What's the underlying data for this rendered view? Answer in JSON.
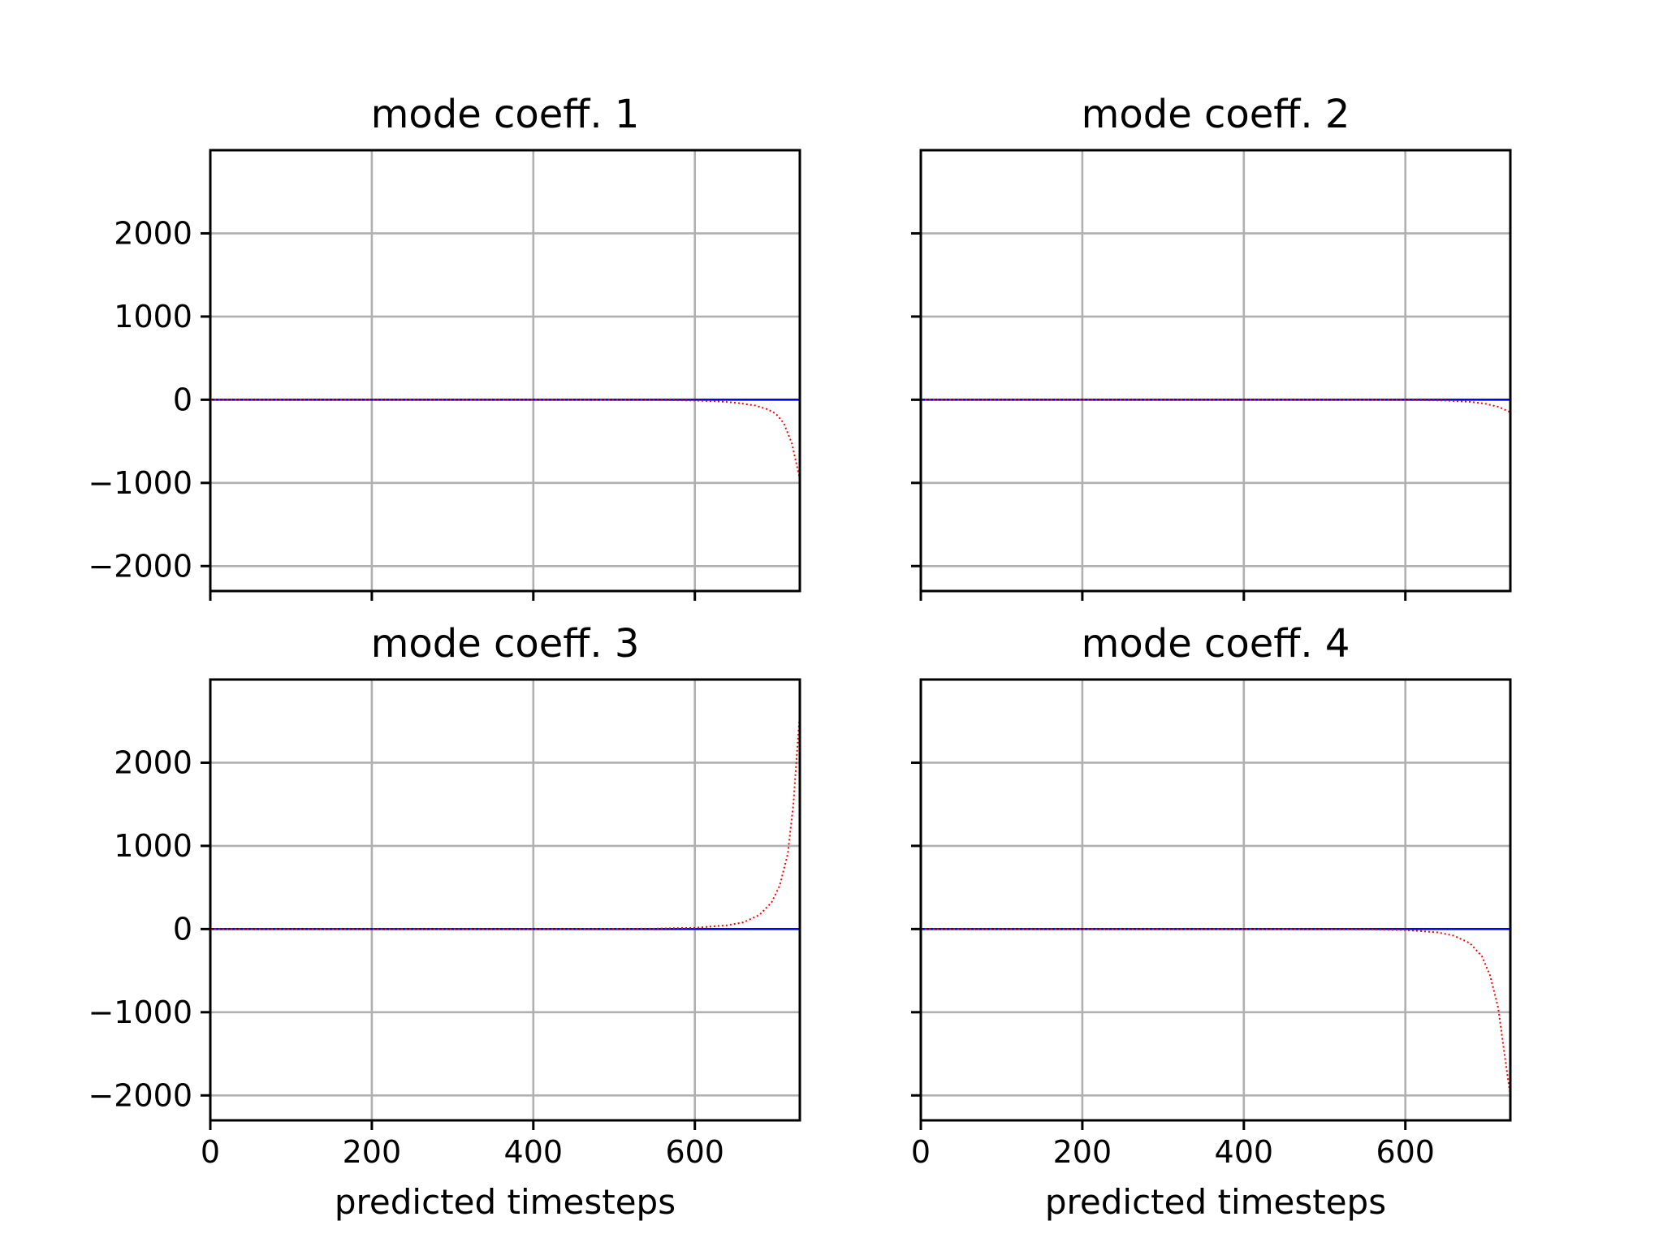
{
  "chart_data": [
    {
      "type": "line",
      "title": "mode coeff. 1",
      "xlabel": "",
      "ylabel": "",
      "xlim": [
        0,
        730
      ],
      "ylim": [
        -2300,
        3000
      ],
      "xticks": [
        0,
        200,
        400,
        600
      ],
      "yticks": [
        -2000,
        -1000,
        0,
        1000,
        2000
      ],
      "show_xticklabels": false,
      "show_yticklabels": true,
      "grid": true,
      "series": [
        {
          "color": "#0000ff",
          "style": "solid",
          "x": [
            0,
            100,
            200,
            300,
            400,
            500,
            600,
            700,
            730
          ],
          "y": [
            0,
            0,
            0,
            0,
            0,
            0,
            0,
            0,
            0
          ]
        },
        {
          "color": "#ff0000",
          "style": "dotted",
          "x": [
            0,
            400,
            550,
            600,
            625,
            650,
            675,
            690,
            700,
            710,
            720,
            730
          ],
          "y": [
            0,
            0,
            -3,
            -10,
            -18,
            -35,
            -70,
            -115,
            -165,
            -280,
            -520,
            -950
          ]
        }
      ]
    },
    {
      "type": "line",
      "title": "mode coeff. 2",
      "xlabel": "",
      "ylabel": "",
      "xlim": [
        0,
        730
      ],
      "ylim": [
        -2300,
        3000
      ],
      "xticks": [
        0,
        200,
        400,
        600
      ],
      "yticks": [
        -2000,
        -1000,
        0,
        1000,
        2000
      ],
      "show_xticklabels": false,
      "show_yticklabels": false,
      "grid": true,
      "series": [
        {
          "color": "#0000ff",
          "style": "solid",
          "x": [
            0,
            100,
            200,
            300,
            400,
            500,
            600,
            700,
            730
          ],
          "y": [
            0,
            0,
            0,
            0,
            0,
            0,
            0,
            0,
            0
          ]
        },
        {
          "color": "#ff0000",
          "style": "dotted",
          "x": [
            0,
            400,
            550,
            600,
            650,
            680,
            700,
            715,
            730
          ],
          "y": [
            0,
            0,
            -1,
            -3,
            -10,
            -25,
            -50,
            -85,
            -150
          ]
        }
      ]
    },
    {
      "type": "line",
      "title": "mode coeff. 3",
      "xlabel": "predicted timesteps",
      "ylabel": "",
      "xlim": [
        0,
        730
      ],
      "ylim": [
        -2300,
        3000
      ],
      "xticks": [
        0,
        200,
        400,
        600
      ],
      "yticks": [
        -2000,
        -1000,
        0,
        1000,
        2000
      ],
      "show_xticklabels": true,
      "show_yticklabels": true,
      "grid": true,
      "series": [
        {
          "color": "#0000ff",
          "style": "solid",
          "x": [
            0,
            100,
            200,
            300,
            400,
            500,
            600,
            700,
            730
          ],
          "y": [
            0,
            0,
            0,
            0,
            0,
            0,
            0,
            0,
            0
          ]
        },
        {
          "color": "#ff0000",
          "style": "dotted",
          "x": [
            0,
            400,
            550,
            600,
            640,
            660,
            680,
            695,
            705,
            715,
            722,
            730
          ],
          "y": [
            0,
            0,
            5,
            15,
            45,
            80,
            170,
            320,
            520,
            900,
            1500,
            2600
          ]
        }
      ]
    },
    {
      "type": "line",
      "title": "mode coeff. 4",
      "xlabel": "predicted timesteps",
      "ylabel": "",
      "xlim": [
        0,
        730
      ],
      "ylim": [
        -2300,
        3000
      ],
      "xticks": [
        0,
        200,
        400,
        600
      ],
      "yticks": [
        -2000,
        -1000,
        0,
        1000,
        2000
      ],
      "show_xticklabels": true,
      "show_yticklabels": false,
      "grid": true,
      "series": [
        {
          "color": "#0000ff",
          "style": "solid",
          "x": [
            0,
            100,
            200,
            300,
            400,
            500,
            600,
            700,
            730
          ],
          "y": [
            0,
            0,
            0,
            0,
            0,
            0,
            0,
            0,
            0
          ]
        },
        {
          "color": "#ff0000",
          "style": "dotted",
          "x": [
            0,
            400,
            550,
            600,
            640,
            660,
            680,
            695,
            705,
            715,
            722,
            730
          ],
          "y": [
            0,
            0,
            -4,
            -12,
            -40,
            -80,
            -170,
            -330,
            -560,
            -950,
            -1450,
            -2000
          ]
        }
      ]
    }
  ]
}
